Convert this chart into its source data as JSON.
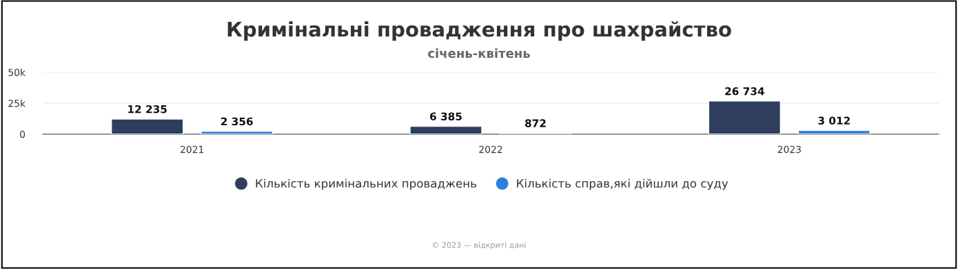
{
  "chart_data": {
    "type": "bar",
    "title": "Кримінальні провадження про шахрайство",
    "subtitle": "січень-квітень",
    "categories": [
      "2021",
      "2022",
      "2023"
    ],
    "series": [
      {
        "name": "Кількість кримінальних проваджень",
        "color": "#2e3e5c",
        "values": [
          12235,
          6385,
          26734
        ],
        "value_labels": [
          "12 235",
          "6 385",
          "26 734"
        ]
      },
      {
        "name": "Кількість справ,які дійшли до суду",
        "color": "#2d7fde",
        "values": [
          2356,
          872,
          3012
        ],
        "value_labels": [
          "2 356",
          "872",
          "3 012"
        ]
      }
    ],
    "ylim": [
      0,
      50000
    ],
    "yticks": [
      0,
      {
        "value": 25000,
        "label": "25k"
      },
      {
        "value": 50000,
        "label": "50k"
      }
    ],
    "grid": "y",
    "legend": "bottom",
    "marker": "circle",
    "annotations": [
      "© 2023 — відкриті дані"
    ]
  }
}
